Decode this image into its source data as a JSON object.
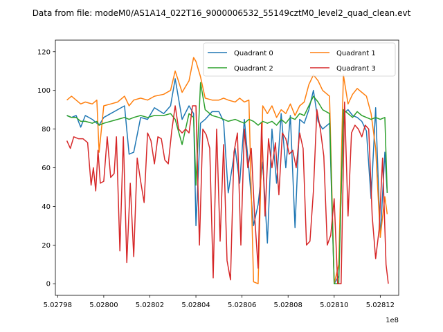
{
  "chart_data": {
    "type": "line",
    "title": "Data from file: modeM0/AS1A14_022T16_9000006532_55149cztM0_level2_quad_clean.evt",
    "xlabel": "",
    "ylabel": "",
    "x_offset_label": "1e8",
    "xlim": [
      502797900,
      502812800
    ],
    "ylim": [
      -6,
      126
    ],
    "x_ticks": [
      502798000,
      502800000,
      502802000,
      502804000,
      502806000,
      502808000,
      502810000,
      502812000
    ],
    "x_tick_labels": [
      "5.02798",
      "5.02800",
      "5.02802",
      "5.02804",
      "5.02806",
      "5.02808",
      "5.02810",
      "5.02812"
    ],
    "y_ticks": [
      0,
      20,
      40,
      60,
      80,
      100,
      120
    ],
    "y_tick_labels": [
      "0",
      "20",
      "40",
      "60",
      "80",
      "100",
      "120"
    ],
    "legend": {
      "placement": "top-right",
      "columns": 2
    },
    "series": [
      {
        "name": "Quadrant 0",
        "color": "#1f77b4",
        "x": [
          502798400,
          502798600,
          502798800,
          502799000,
          502799200,
          502799500,
          502799700,
          502799800,
          502800000,
          502800300,
          502800600,
          502800900,
          502801100,
          502801300,
          502801600,
          502801900,
          502802200,
          502802600,
          502802900,
          502803100,
          502803400,
          502803700,
          502803900,
          502804000,
          502804200,
          502804400,
          502804700,
          502805000,
          502805200,
          502805400,
          502805700,
          502805900,
          502806100,
          502806300,
          502806500,
          502806700,
          502806900,
          502807100,
          502807300,
          502807500,
          502807700,
          502807900,
          502808100,
          502808300,
          502808500,
          502808700,
          502808900,
          502809100,
          502809300,
          502809500,
          502809800,
          502810000,
          502810200,
          502810400,
          502810600,
          502810800,
          502811000,
          502811200,
          502811400,
          502811600,
          502811800,
          502812000,
          502812200,
          502812300
        ],
        "values": [
          87,
          86,
          87,
          81,
          87,
          85,
          83,
          82,
          86,
          88,
          90,
          92,
          67,
          68,
          86,
          85,
          91,
          88,
          92,
          106,
          85,
          92,
          88,
          30,
          83,
          85,
          89,
          89,
          84,
          47,
          70,
          52,
          85,
          59,
          30,
          41,
          63,
          21,
          80,
          52,
          88,
          60,
          87,
          29,
          85,
          83,
          90,
          100,
          84,
          80,
          83,
          0,
          4,
          88,
          90,
          87,
          86,
          84,
          79,
          44,
          91,
          24,
          68,
          47
        ]
      },
      {
        "name": "Quadrant 1",
        "color": "#ff7f0e",
        "x": [
          502798400,
          502798600,
          502798800,
          502799000,
          502799200,
          502799500,
          502799700,
          502799800,
          502800000,
          502800300,
          502800600,
          502800900,
          502801100,
          502801300,
          502801600,
          502801900,
          502802200,
          502802600,
          502802900,
          502803100,
          502803400,
          502803700,
          502803900,
          502804000,
          502804200,
          502804400,
          502804700,
          502805000,
          502805200,
          502805400,
          502805700,
          502805900,
          502806100,
          502806300,
          502806500,
          502806700,
          502806900,
          502807100,
          502807300,
          502807500,
          502807700,
          502807900,
          502808100,
          502808300,
          502808500,
          502808700,
          502808900,
          502809100,
          502809300,
          502809500,
          502809800,
          502810000,
          502810200,
          502810400,
          502810600,
          502810800,
          502811000,
          502811200,
          502811400,
          502811600,
          502811800,
          502812000,
          502812200,
          502812300
        ],
        "values": [
          95,
          97,
          95,
          93,
          94,
          93,
          95,
          68,
          92,
          93,
          94,
          97,
          92,
          95,
          96,
          95,
          97,
          98,
          100,
          110,
          99,
          105,
          117,
          115,
          107,
          96,
          95,
          95,
          96,
          95,
          94,
          96,
          94,
          95,
          1,
          0,
          92,
          88,
          92,
          86,
          90,
          88,
          93,
          87,
          92,
          94,
          103,
          108,
          105,
          100,
          97,
          0,
          10,
          108,
          93,
          98,
          101,
          99,
          97,
          88,
          70,
          24,
          45,
          36
        ]
      },
      {
        "name": "Quadrant 2",
        "color": "#2ca02c",
        "x": [
          502798400,
          502798600,
          502798800,
          502799000,
          502799200,
          502799500,
          502799700,
          502799800,
          502800000,
          502800300,
          502800600,
          502800900,
          502801100,
          502801300,
          502801600,
          502801900,
          502802200,
          502802600,
          502802900,
          502803100,
          502803400,
          502803700,
          502803900,
          502804000,
          502804200,
          502804400,
          502804700,
          502805000,
          502805200,
          502805400,
          502805700,
          502805900,
          502806100,
          502806300,
          502806500,
          502806700,
          502806900,
          502807100,
          502807300,
          502807500,
          502807700,
          502807900,
          502808100,
          502808300,
          502808500,
          502808700,
          502808900,
          502809100,
          502809300,
          502809500,
          502809800,
          502810000,
          502810200,
          502810400,
          502810600,
          502810800,
          502811000,
          502811200,
          502811400,
          502811600,
          502811800,
          502812000,
          502812200,
          502812300
        ],
        "values": [
          87,
          86,
          86,
          84,
          84,
          83,
          84,
          82,
          83,
          84,
          85,
          86,
          85,
          86,
          87,
          86,
          87,
          87,
          88,
          85,
          72,
          88,
          86,
          51,
          104,
          90,
          87,
          86,
          85,
          84,
          85,
          84,
          83,
          85,
          84,
          82,
          84,
          83,
          84,
          82,
          85,
          83,
          86,
          85,
          88,
          87,
          92,
          97,
          94,
          90,
          88,
          0,
          0,
          90,
          88,
          86,
          89,
          87,
          86,
          85,
          86,
          85,
          86,
          47
        ]
      },
      {
        "name": "Quadrant 3",
        "color": "#d62728",
        "x": [
          502798400,
          502798550,
          502798700,
          502798900,
          502799100,
          502799300,
          502799450,
          502799550,
          502799650,
          502799750,
          502799850,
          502800000,
          502800150,
          502800300,
          502800450,
          502800550,
          502800700,
          502800850,
          502801000,
          502801150,
          502801300,
          502801450,
          502801600,
          502801750,
          502801900,
          502802050,
          502802200,
          502802350,
          502802500,
          502802650,
          502802800,
          502802950,
          502803100,
          502803250,
          502803400,
          502803550,
          502803700,
          502803850,
          502804000,
          502804150,
          502804300,
          502804450,
          502804600,
          502804750,
          502804900,
          502805050,
          502805200,
          502805350,
          502805500,
          502805650,
          502805800,
          502805950,
          502806100,
          502806250,
          502806400,
          502806550,
          502806700,
          502806850,
          502807000,
          502807150,
          502807300,
          502807450,
          502807600,
          502807750,
          502807900,
          502808050,
          502808200,
          502808350,
          502808500,
          502808650,
          502808800,
          502808950,
          502809100,
          502809250,
          502809400,
          502809550,
          502809700,
          502809850,
          502810000,
          502810150,
          502810300,
          502810450,
          502810600,
          502810750,
          502810900,
          502811050,
          502811200,
          502811350,
          502811500,
          502811650,
          502811800,
          502811950,
          502812100,
          502812250,
          502812350
        ],
        "values": [
          74,
          70,
          76,
          75,
          75,
          73,
          51,
          60,
          48,
          69,
          52,
          53,
          76,
          55,
          57,
          76,
          17,
          76,
          11,
          52,
          14,
          65,
          53,
          42,
          78,
          74,
          62,
          76,
          75,
          64,
          62,
          79,
          92,
          80,
          78,
          80,
          78,
          92,
          92,
          20,
          80,
          77,
          70,
          3,
          80,
          22,
          72,
          12,
          2,
          68,
          78,
          20,
          80,
          60,
          70,
          35,
          8,
          83,
          35,
          75,
          60,
          73,
          46,
          78,
          75,
          67,
          69,
          60,
          78,
          70,
          20,
          22,
          48,
          90,
          80,
          66,
          20,
          25,
          44,
          0,
          0,
          94,
          35,
          78,
          82,
          80,
          76,
          82,
          80,
          35,
          13,
          28,
          65,
          10,
          0
        ]
      }
    ]
  }
}
